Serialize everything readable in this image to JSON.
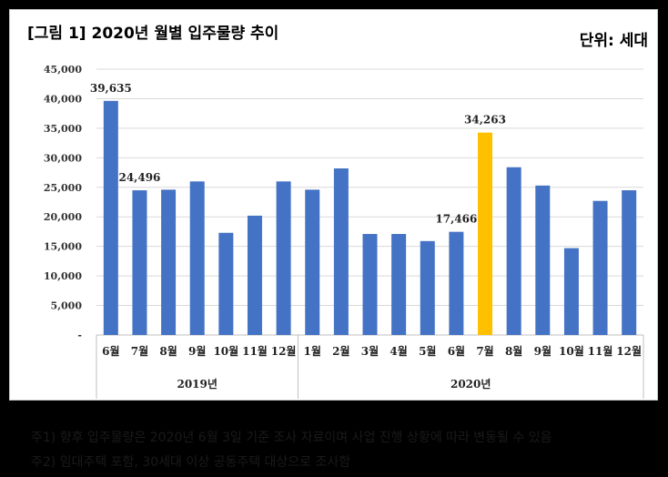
{
  "header": {
    "title": "[그림 1] 2020년 월별 입주물량 추이",
    "unit": "단위: 세대"
  },
  "chart_data": {
    "type": "bar",
    "title": "",
    "xlabel": "",
    "ylabel": "",
    "ylim": [
      0,
      45000
    ],
    "yticks": [
      "-",
      "5,000",
      "10,000",
      "15,000",
      "20,000",
      "25,000",
      "30,000",
      "35,000",
      "40,000",
      "45,000"
    ],
    "grid": true,
    "categories": [
      "6월",
      "7월",
      "8월",
      "9월",
      "10월",
      "11월",
      "12월",
      "1월",
      "2월",
      "3월",
      "4월",
      "5월",
      "6월",
      "7월",
      "8월",
      "9월",
      "10월",
      "11월",
      "12월"
    ],
    "groups": [
      {
        "label": "2019년",
        "start": 0,
        "count": 7
      },
      {
        "label": "2020년",
        "start": 7,
        "count": 12
      }
    ],
    "values": [
      39635,
      24496,
      24600,
      26000,
      17300,
      20200,
      26000,
      24600,
      28200,
      17100,
      17100,
      15900,
      17466,
      34263,
      28400,
      25300,
      14700,
      22700,
      24500
    ],
    "data_labels": [
      {
        "index": 0,
        "text": "39,635"
      },
      {
        "index": 1,
        "text": "24,496"
      },
      {
        "index": 12,
        "text": "17,466"
      },
      {
        "index": 13,
        "text": "34,263"
      }
    ],
    "highlight_index": 13,
    "colors": {
      "bar": "#4472C4",
      "highlight": "#FFC000",
      "grid": "#D9D9D9"
    }
  },
  "notes": [
    "주1) 향후 입주물량은 2020년 6월 3일 기준 조사 자료이며 사업 진행 상황에 따라 변동될 수 있음",
    "주2) 임대주택 포함, 30세대 이상 공동주택 대상으로 조사함"
  ]
}
